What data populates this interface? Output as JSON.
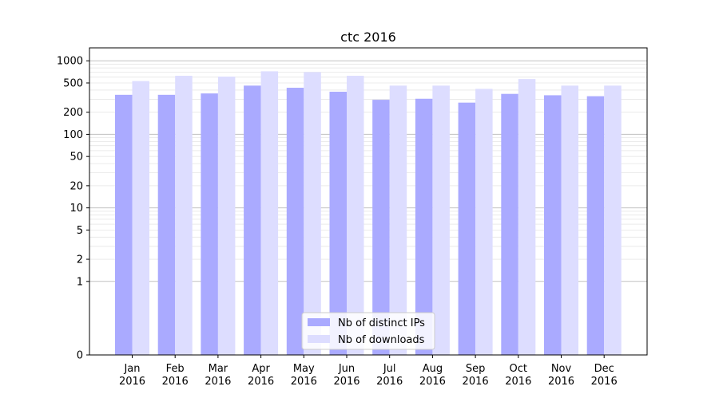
{
  "chart_data": {
    "type": "bar",
    "title": "ctc 2016",
    "xlabel": "",
    "ylabel": "",
    "scale": "symlog",
    "categories": [
      [
        "Jan",
        "2016"
      ],
      [
        "Feb",
        "2016"
      ],
      [
        "Mar",
        "2016"
      ],
      [
        "Apr",
        "2016"
      ],
      [
        "May",
        "2016"
      ],
      [
        "Jun",
        "2016"
      ],
      [
        "Jul",
        "2016"
      ],
      [
        "Aug",
        "2016"
      ],
      [
        "Sep",
        "2016"
      ],
      [
        "Oct",
        "2016"
      ],
      [
        "Nov",
        "2016"
      ],
      [
        "Dec",
        "2016"
      ]
    ],
    "series": [
      {
        "name": "Nb of distinct IPs",
        "color": "#aaaaff",
        "values": [
          345,
          345,
          360,
          460,
          430,
          380,
          295,
          305,
          270,
          355,
          340,
          330
        ]
      },
      {
        "name": "Nb of downloads",
        "color": "#ddddff",
        "values": [
          530,
          625,
          610,
          720,
          700,
          625,
          460,
          460,
          415,
          565,
          460,
          460
        ]
      }
    ],
    "ylim": [
      0,
      1500
    ],
    "y_ticks": [
      {
        "value": 0,
        "label": "0"
      },
      {
        "value": 1,
        "label": "1"
      },
      {
        "value": 2,
        "label": "2"
      },
      {
        "value": 5,
        "label": "5"
      },
      {
        "value": 10,
        "label": "10"
      },
      {
        "value": 20,
        "label": "20"
      },
      {
        "value": 50,
        "label": "50"
      },
      {
        "value": 100,
        "label": "100"
      },
      {
        "value": 200,
        "label": "200"
      },
      {
        "value": 500,
        "label": "500"
      },
      {
        "value": 1000,
        "label": "1000"
      }
    ],
    "grid": true,
    "legend_position": "bottom-center"
  }
}
